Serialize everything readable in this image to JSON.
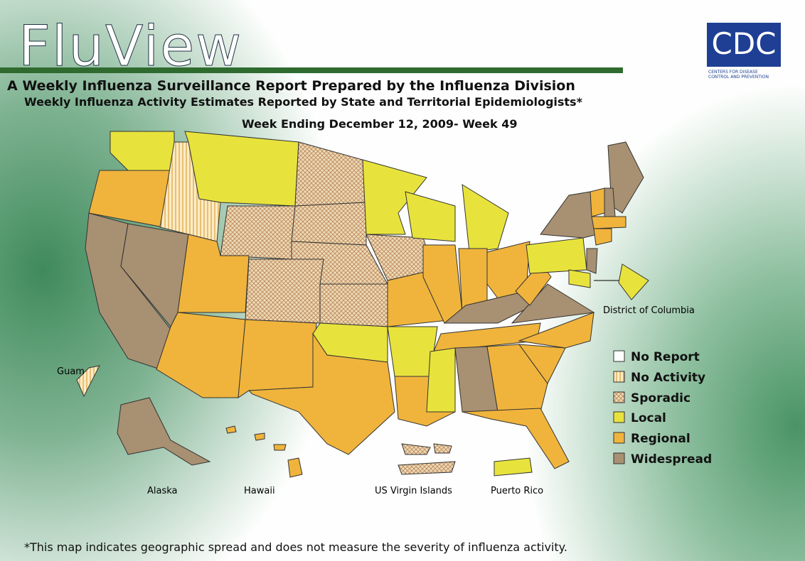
{
  "header": {
    "title": "FluView",
    "subtitle": "A Weekly Influenza Surveillance Report Prepared by the Influenza Division",
    "subtitle2": "Weekly Influenza Activity Estimates Reported by State and Territorial Epidemiologists*",
    "week": "Week Ending December 12, 2009- Week 49"
  },
  "logo": {
    "text": "CDC",
    "caption_line1": "Centers for Disease",
    "caption_line2": "Control and Prevention"
  },
  "legend": [
    {
      "label": "No Report"
    },
    {
      "label": "No Activity"
    },
    {
      "label": "Sporadic"
    },
    {
      "label": "Local"
    },
    {
      "label": "Regional"
    },
    {
      "label": "Widespread"
    }
  ],
  "labels": {
    "dc": "District of Columbia",
    "guam": "Guam",
    "alaska": "Alaska",
    "hawaii": "Hawaii",
    "usvi": "US Virgin Islands",
    "pr": "Puerto Rico"
  },
  "footnote": "*This map indicates geographic spread and does not measure the severity of influenza activity."
}
